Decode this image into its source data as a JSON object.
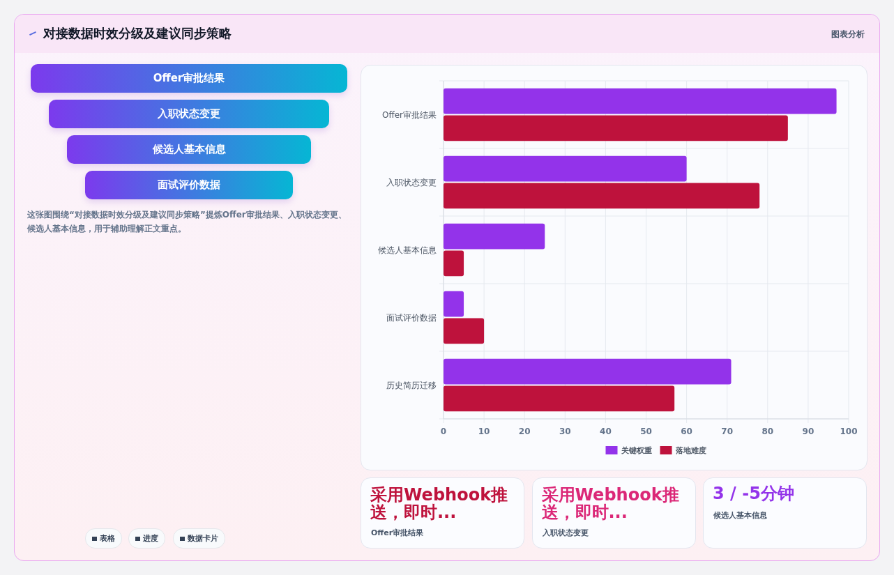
{
  "chart_data": [
    {
      "type": "other",
      "title": "对接数据时效分级及建议同步策略",
      "subtitle": "图表分析",
      "categories": [
        "Offer审批结果",
        "入职状态变更",
        "候选人基本信息",
        "面试评价数据"
      ],
      "annotations": [
        "这张图围绕“对接数据时效分级及建议同步策略”提炼Offer审批结果、入职状态变更、候选人基本信息，用于辅助理解正文重点。",
        "表格",
        "进度",
        "数据卡片"
      ]
    },
    {
      "type": "bar",
      "orientation": "horizontal",
      "categories": [
        "Offer审批结果",
        "入职状态变更",
        "候选人基本信息",
        "面试评价数据",
        "历史简历迁移"
      ],
      "series": [
        {
          "name": "关键权重",
          "color": "#9333ea",
          "values": [
            97,
            60,
            25,
            5,
            71
          ]
        },
        {
          "name": "落地难度",
          "color": "#be123c",
          "values": [
            85,
            78,
            5,
            10,
            57
          ]
        }
      ],
      "xlim": [
        0,
        100
      ],
      "xticks": [
        0,
        10,
        20,
        30,
        40,
        50,
        60,
        70,
        80,
        90,
        100
      ],
      "grid": true,
      "legend": "bottom"
    },
    {
      "type": "other",
      "annotations": [
        "采用Webhook推送，即时...",
        "Offer审批结果",
        "采用Webhook推送，即时...",
        "入职状态变更",
        "3 / -5分钟",
        "候选人基本信息"
      ]
    }
  ]
}
